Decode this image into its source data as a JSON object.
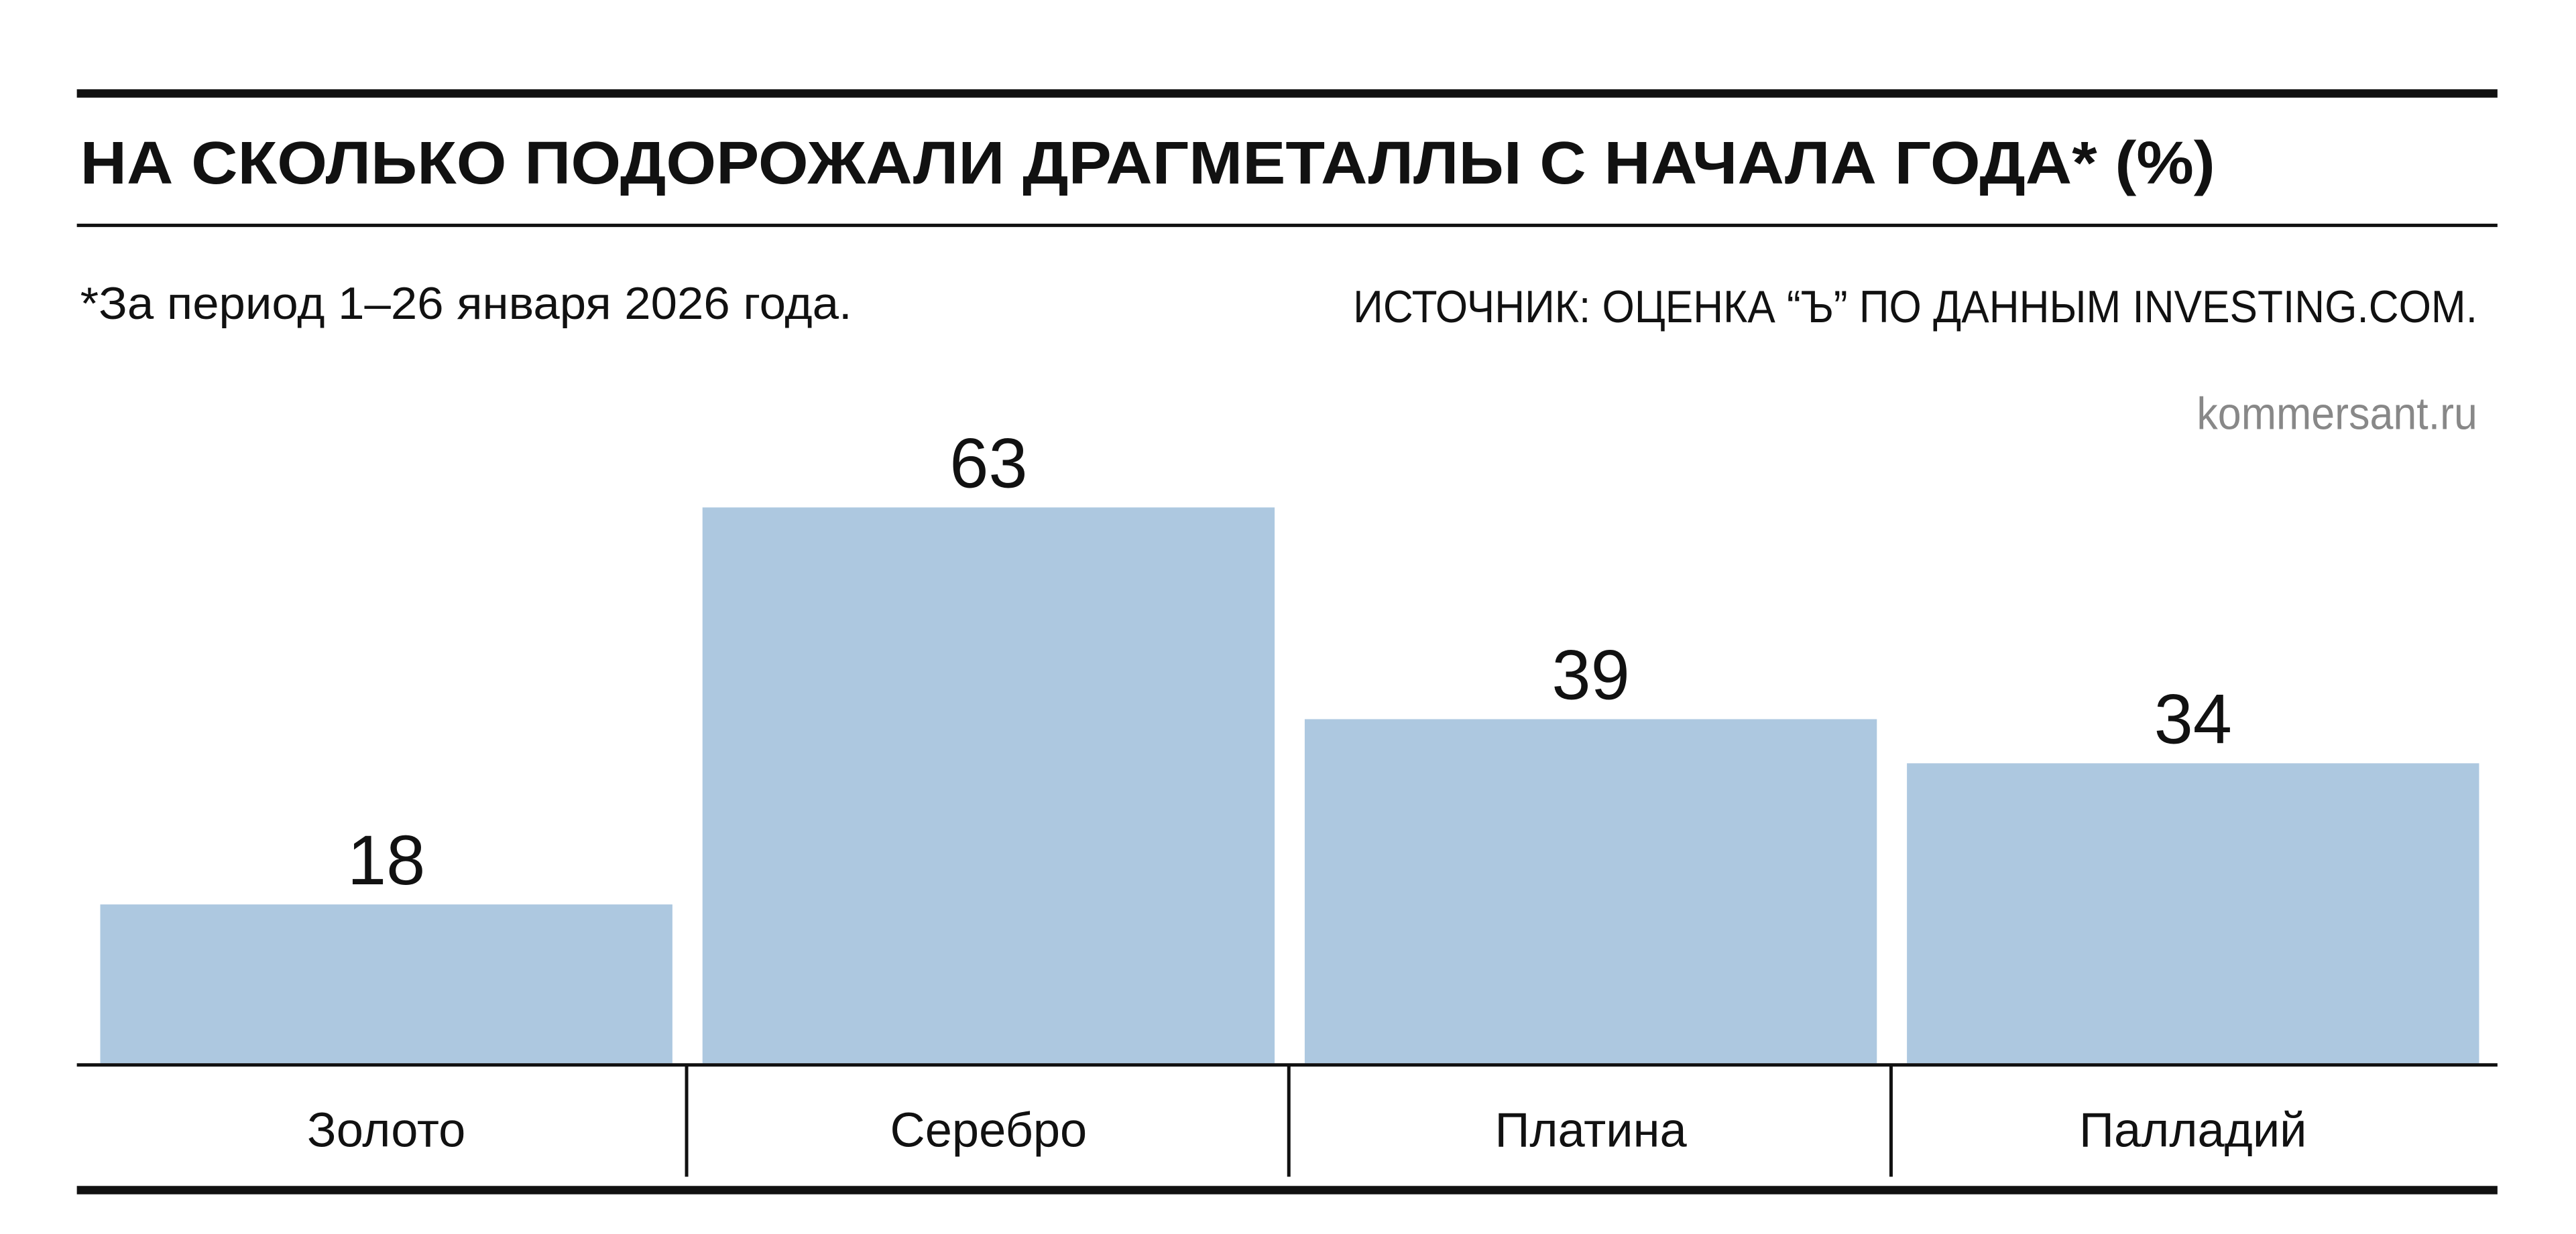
{
  "chart_data": {
    "type": "bar",
    "title": "НА СКОЛЬКО ПОДОРОЖАЛИ ДРАГМЕТАЛЛЫ С НАЧАЛА ГОДА* (%)",
    "subtitle": "*За период 1–26 января 2026 года.",
    "source": "ИСТОЧНИК: ОЦЕНКА “Ъ” ПО ДАННЫМ INVESTING.COM.",
    "watermark": "kommersant.ru",
    "categories": [
      "Золото",
      "Серебро",
      "Платина",
      "Палладий"
    ],
    "values": [
      18,
      63,
      39,
      34
    ],
    "color": "#adc8e0"
  }
}
